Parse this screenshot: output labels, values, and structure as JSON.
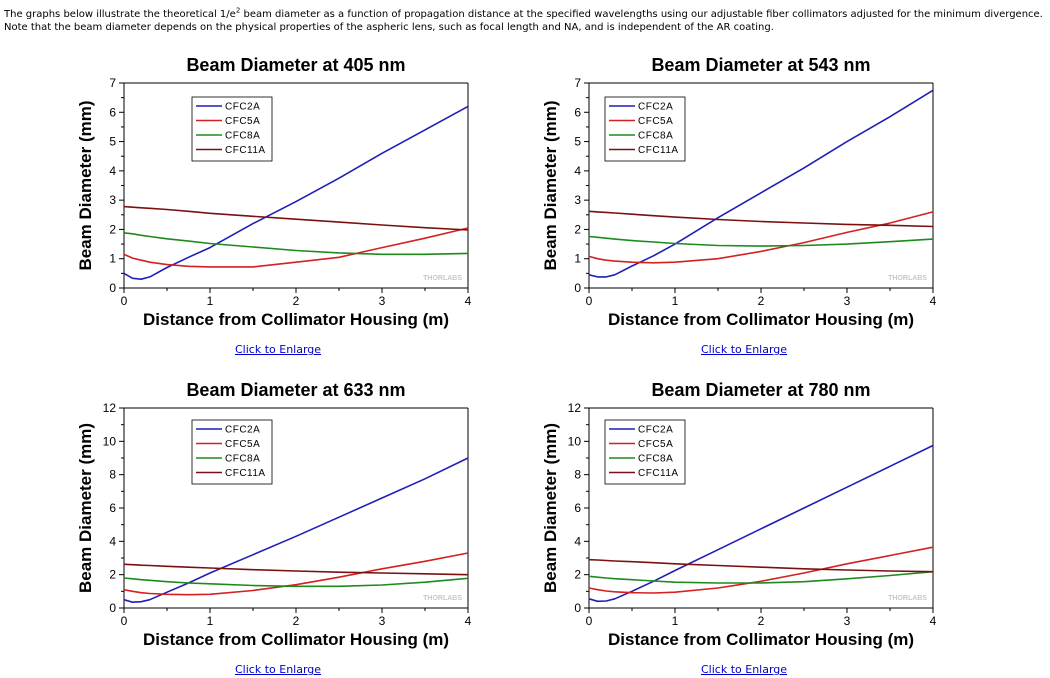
{
  "intro": {
    "part1": "The graphs below illustrate the theoretical 1/e",
    "sup": "2",
    "part2": " beam diameter as a function of propagation distance at the specified wavelengths using our adjustable fiber collimators adjusted for the minimum divergence. Note that the beam diameter depends on the physical properties of the aspheric lens, such as focal length and NA, and is independent of the AR coating."
  },
  "enlarge_label": "Click to Enlarge",
  "watermark": "THORLABS",
  "series_colors": {
    "CFC2A": "#1f1fb8",
    "CFC5A": "#d42020",
    "CFC8A": "#1e8a1e",
    "CFC11A": "#7a1010"
  },
  "chart_data": [
    {
      "type": "line",
      "title": "Beam Diameter at 405 nm",
      "xlabel": "Distance from Collimator Housing (m)",
      "ylabel": "Beam Diameter (mm)",
      "xlim": [
        0,
        4
      ],
      "ylim": [
        0,
        7
      ],
      "xticks": [
        0,
        1,
        2,
        3,
        4
      ],
      "yticks": [
        0,
        1,
        2,
        3,
        4,
        5,
        6,
        7
      ],
      "legend_position": "top-left",
      "x": [
        0,
        0.1,
        0.2,
        0.3,
        0.5,
        0.75,
        1,
        1.5,
        2,
        2.5,
        3,
        3.5,
        4
      ],
      "series": [
        {
          "name": "CFC2A",
          "values": [
            0.5,
            0.33,
            0.3,
            0.38,
            0.7,
            1.05,
            1.38,
            2.2,
            2.95,
            3.75,
            4.6,
            5.4,
            6.2
          ]
        },
        {
          "name": "CFC5A",
          "values": [
            1.15,
            1.02,
            0.95,
            0.88,
            0.8,
            0.74,
            0.72,
            0.72,
            0.88,
            1.05,
            1.38,
            1.7,
            2.05
          ]
        },
        {
          "name": "CFC8A",
          "values": [
            1.88,
            1.85,
            1.8,
            1.76,
            1.68,
            1.6,
            1.52,
            1.4,
            1.28,
            1.2,
            1.15,
            1.15,
            1.18
          ]
        },
        {
          "name": "CFC11A",
          "values": [
            2.78,
            2.76,
            2.74,
            2.72,
            2.68,
            2.62,
            2.55,
            2.45,
            2.35,
            2.25,
            2.15,
            2.06,
            1.98
          ]
        }
      ]
    },
    {
      "type": "line",
      "title": "Beam Diameter at 543 nm",
      "xlabel": "Distance from Collimator Housing (m)",
      "ylabel": "Beam Diameter (mm)",
      "xlim": [
        0,
        4
      ],
      "ylim": [
        0,
        7
      ],
      "xticks": [
        0,
        1,
        2,
        3,
        4
      ],
      "yticks": [
        0,
        1,
        2,
        3,
        4,
        5,
        6,
        7
      ],
      "legend_position": "top-left",
      "x": [
        0,
        0.1,
        0.2,
        0.3,
        0.5,
        0.75,
        1,
        1.5,
        2,
        2.5,
        3,
        3.5,
        4
      ],
      "series": [
        {
          "name": "CFC2A",
          "values": [
            0.45,
            0.38,
            0.38,
            0.45,
            0.75,
            1.1,
            1.5,
            2.4,
            3.25,
            4.1,
            5.0,
            5.85,
            6.75
          ]
        },
        {
          "name": "CFC5A",
          "values": [
            1.08,
            1.0,
            0.95,
            0.92,
            0.88,
            0.86,
            0.88,
            1.0,
            1.25,
            1.55,
            1.9,
            2.22,
            2.6
          ]
        },
        {
          "name": "CFC8A",
          "values": [
            1.76,
            1.73,
            1.7,
            1.67,
            1.62,
            1.57,
            1.52,
            1.45,
            1.43,
            1.45,
            1.5,
            1.58,
            1.67
          ]
        },
        {
          "name": "CFC11A",
          "values": [
            2.62,
            2.6,
            2.58,
            2.56,
            2.52,
            2.47,
            2.42,
            2.34,
            2.27,
            2.22,
            2.17,
            2.14,
            2.1
          ]
        }
      ]
    },
    {
      "type": "line",
      "title": "Beam Diameter at 633 nm",
      "xlabel": "Distance from Collimator Housing (m)",
      "ylabel": "Beam Diameter (mm)",
      "xlim": [
        0,
        4
      ],
      "ylim": [
        0,
        12
      ],
      "xticks": [
        0,
        1,
        2,
        3,
        4
      ],
      "yticks": [
        0,
        2,
        4,
        6,
        8,
        10,
        12
      ],
      "legend_position": "top-left",
      "x": [
        0,
        0.1,
        0.2,
        0.3,
        0.5,
        0.75,
        1,
        1.5,
        2,
        2.5,
        3,
        3.5,
        4
      ],
      "series": [
        {
          "name": "CFC2A",
          "values": [
            0.5,
            0.35,
            0.38,
            0.5,
            0.95,
            1.5,
            2.1,
            3.2,
            4.3,
            5.45,
            6.6,
            7.75,
            9.0
          ]
        },
        {
          "name": "CFC5A",
          "values": [
            1.1,
            1.0,
            0.92,
            0.87,
            0.82,
            0.8,
            0.82,
            1.05,
            1.4,
            1.85,
            2.35,
            2.8,
            3.3
          ]
        },
        {
          "name": "CFC8A",
          "values": [
            1.8,
            1.75,
            1.7,
            1.66,
            1.58,
            1.5,
            1.45,
            1.35,
            1.3,
            1.3,
            1.38,
            1.55,
            1.78
          ]
        },
        {
          "name": "CFC11A",
          "values": [
            2.62,
            2.6,
            2.57,
            2.55,
            2.5,
            2.45,
            2.4,
            2.3,
            2.22,
            2.15,
            2.1,
            2.05,
            2.0
          ]
        }
      ]
    },
    {
      "type": "line",
      "title": "Beam Diameter at 780 nm",
      "xlabel": "Distance from Collimator Housing (m)",
      "ylabel": "Beam Diameter (mm)",
      "xlim": [
        0,
        4
      ],
      "ylim": [
        0,
        12
      ],
      "xticks": [
        0,
        1,
        2,
        3,
        4
      ],
      "yticks": [
        0,
        2,
        4,
        6,
        8,
        10,
        12
      ],
      "legend_position": "top-left",
      "x": [
        0,
        0.1,
        0.2,
        0.3,
        0.5,
        0.75,
        1,
        1.5,
        2,
        2.5,
        3,
        3.5,
        4
      ],
      "series": [
        {
          "name": "CFC2A",
          "values": [
            0.55,
            0.4,
            0.42,
            0.55,
            1.0,
            1.6,
            2.25,
            3.5,
            4.75,
            6.0,
            7.25,
            8.5,
            9.75
          ]
        },
        {
          "name": "CFC5A",
          "values": [
            1.2,
            1.1,
            1.02,
            0.97,
            0.92,
            0.9,
            0.95,
            1.2,
            1.6,
            2.1,
            2.65,
            3.15,
            3.65
          ]
        },
        {
          "name": "CFC8A",
          "values": [
            1.9,
            1.85,
            1.8,
            1.76,
            1.7,
            1.62,
            1.55,
            1.5,
            1.5,
            1.58,
            1.75,
            1.95,
            2.18
          ]
        },
        {
          "name": "CFC11A",
          "values": [
            2.9,
            2.88,
            2.85,
            2.82,
            2.78,
            2.72,
            2.65,
            2.55,
            2.45,
            2.35,
            2.28,
            2.22,
            2.18
          ]
        }
      ]
    }
  ]
}
